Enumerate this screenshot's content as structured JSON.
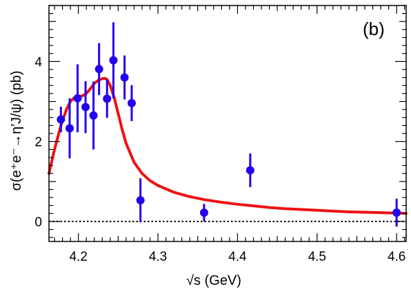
{
  "chart_data": {
    "type": "scatter",
    "panel_label": "(b)",
    "xlabel": "√s (GeV)",
    "ylabel": "σ(e⁺e⁻→η′J/ψ) (pb)",
    "xlim": [
      4.163,
      4.612
    ],
    "ylim": [
      -0.5,
      5.4
    ],
    "x_ticks": [
      4.2,
      4.3,
      4.4,
      4.5,
      4.6
    ],
    "x_tick_labels": [
      "4.2",
      "4.3",
      "4.4",
      "4.5",
      "4.6"
    ],
    "y_ticks": [
      0,
      2,
      4
    ],
    "y_tick_labels": [
      "0",
      "2",
      "4"
    ],
    "grid": false,
    "legend": "none",
    "points": [
      {
        "x": 4.178,
        "y": 2.55,
        "err": 0.32
      },
      {
        "x": 4.189,
        "y": 2.33,
        "err": 0.75
      },
      {
        "x": 4.199,
        "y": 3.08,
        "err": 0.85
      },
      {
        "x": 4.209,
        "y": 2.86,
        "err": 0.65
      },
      {
        "x": 4.219,
        "y": 2.65,
        "err": 0.85
      },
      {
        "x": 4.226,
        "y": 3.81,
        "err": 0.65
      },
      {
        "x": 4.236,
        "y": 3.07,
        "err": 0.48
      },
      {
        "x": 4.244,
        "y": 4.03,
        "err": 0.95
      },
      {
        "x": 4.258,
        "y": 3.6,
        "err": 0.55
      },
      {
        "x": 4.267,
        "y": 2.96,
        "err": 0.45
      },
      {
        "x": 4.278,
        "y": 0.53,
        "err": 0.55
      },
      {
        "x": 4.358,
        "y": 0.22,
        "err": 0.22
      },
      {
        "x": 4.416,
        "y": 1.28,
        "err": 0.42
      },
      {
        "x": 4.6,
        "y": 0.22,
        "err": 0.35
      }
    ],
    "fit_curve": {
      "x": [
        4.163,
        4.17,
        4.178,
        4.185,
        4.19,
        4.195,
        4.2,
        4.205,
        4.21,
        4.215,
        4.22,
        4.225,
        4.23,
        4.233,
        4.236,
        4.24,
        4.245,
        4.25,
        4.255,
        4.26,
        4.27,
        4.28,
        4.29,
        4.3,
        4.32,
        4.34,
        4.36,
        4.38,
        4.4,
        4.42,
        4.44,
        4.46,
        4.48,
        4.5,
        4.52,
        4.54,
        4.56,
        4.58,
        4.6,
        4.612
      ],
      "y": [
        1.2,
        1.8,
        2.4,
        2.8,
        3.0,
        3.1,
        3.12,
        3.14,
        3.2,
        3.32,
        3.45,
        3.53,
        3.57,
        3.58,
        3.55,
        3.4,
        3.1,
        2.7,
        2.3,
        1.95,
        1.48,
        1.2,
        1.02,
        0.9,
        0.73,
        0.62,
        0.54,
        0.48,
        0.43,
        0.39,
        0.35,
        0.32,
        0.3,
        0.28,
        0.26,
        0.24,
        0.23,
        0.22,
        0.21,
        0.2
      ]
    },
    "series_color": "#2200ee",
    "fit_color": "#ee1111",
    "zero_line": true
  }
}
